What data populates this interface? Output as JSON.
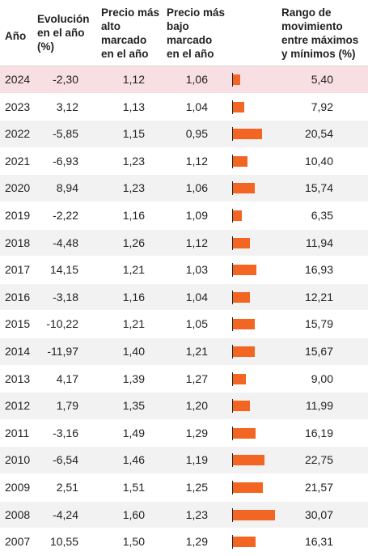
{
  "headers": {
    "year": "Año",
    "evolution": "Evolución\nen el año\n(%)",
    "max_price": "Precio más\nalto\nmarcado\nen el año",
    "min_price": "Precio más\nbajo\nmarcado\nen el año",
    "range": "Rango de\nmovimiento\nentre máximos\ny mínimos (%)"
  },
  "bar_color": "#f26522",
  "highlight_color": "#f7dfe3",
  "rows": [
    {
      "year": "2024",
      "evolution": "-2,30",
      "max": "1,12",
      "min": "1,06",
      "range": "5,40",
      "range_value": 5.4,
      "highlight": true
    },
    {
      "year": "2023",
      "evolution": "3,12",
      "max": "1,13",
      "min": "1,04",
      "range": "7,92",
      "range_value": 7.92
    },
    {
      "year": "2022",
      "evolution": "-5,85",
      "max": "1,15",
      "min": "0,95",
      "range": "20,54",
      "range_value": 20.54
    },
    {
      "year": "2021",
      "evolution": "-6,93",
      "max": "1,23",
      "min": "1,12",
      "range": "10,40",
      "range_value": 10.4
    },
    {
      "year": "2020",
      "evolution": "8,94",
      "max": "1,23",
      "min": "1,06",
      "range": "15,74",
      "range_value": 15.74
    },
    {
      "year": "2019",
      "evolution": "-2,22",
      "max": "1,16",
      "min": "1,09",
      "range": "6,35",
      "range_value": 6.35
    },
    {
      "year": "2018",
      "evolution": "-4,48",
      "max": "1,26",
      "min": "1,12",
      "range": "11,94",
      "range_value": 11.94
    },
    {
      "year": "2017",
      "evolution": "14,15",
      "max": "1,21",
      "min": "1,03",
      "range": "16,93",
      "range_value": 16.93
    },
    {
      "year": "2016",
      "evolution": "-3,18",
      "max": "1,16",
      "min": "1,04",
      "range": "12,21",
      "range_value": 12.21
    },
    {
      "year": "2015",
      "evolution": "-10,22",
      "max": "1,21",
      "min": "1,05",
      "range": "15,79",
      "range_value": 15.79
    },
    {
      "year": "2014",
      "evolution": "-11,97",
      "max": "1,40",
      "min": "1,21",
      "range": "15,67",
      "range_value": 15.67
    },
    {
      "year": "2013",
      "evolution": "4,17",
      "max": "1,39",
      "min": "1,27",
      "range": "9,00",
      "range_value": 9.0
    },
    {
      "year": "2012",
      "evolution": "1,79",
      "max": "1,35",
      "min": "1,20",
      "range": "11,99",
      "range_value": 11.99
    },
    {
      "year": "2011",
      "evolution": "-3,16",
      "max": "1,49",
      "min": "1,29",
      "range": "16,19",
      "range_value": 16.19
    },
    {
      "year": "2010",
      "evolution": "-6,54",
      "max": "1,46",
      "min": "1,19",
      "range": "22,75",
      "range_value": 22.75
    },
    {
      "year": "2009",
      "evolution": "2,51",
      "max": "1,51",
      "min": "1,25",
      "range": "21,57",
      "range_value": 21.57
    },
    {
      "year": "2008",
      "evolution": "-4,24",
      "max": "1,60",
      "min": "1,23",
      "range": "30,07",
      "range_value": 30.07
    },
    {
      "year": "2007",
      "evolution": "10,55",
      "max": "1,50",
      "min": "1,29",
      "range": "16,31",
      "range_value": 16.31
    }
  ]
}
